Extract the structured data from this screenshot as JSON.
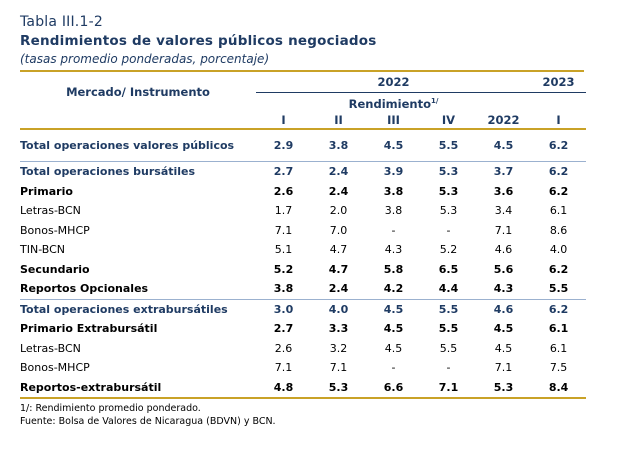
{
  "table_number": "Tabla III.1-2",
  "title": "Rendimientos de valores públicos negociados",
  "subtitle": "(tasas promedio ponderadas, porcentaje)",
  "header": {
    "left": "Mercado/ Instrumento",
    "year_2022": "2022",
    "year_2023": "2023",
    "rendimiento": "Rendimiento",
    "rendimiento_note": "1/",
    "columns": [
      "I",
      "II",
      "III",
      "IV",
      "2022",
      "I"
    ]
  },
  "rows": [
    {
      "label": "Total operaciones valores públicos",
      "style": "blue",
      "values": [
        "2.9",
        "3.8",
        "4.5",
        "5.5",
        "4.5",
        "6.2"
      ]
    },
    {
      "label": "Total operaciones bursátiles",
      "style": "blue",
      "values": [
        "2.7",
        "2.4",
        "3.9",
        "5.3",
        "3.7",
        "6.2"
      ]
    },
    {
      "label": "Primario",
      "style": "bold",
      "values": [
        "2.6",
        "2.4",
        "3.8",
        "5.3",
        "3.6",
        "6.2"
      ]
    },
    {
      "label": "Letras-BCN",
      "style": "reg",
      "values": [
        "1.7",
        "2.0",
        "3.8",
        "5.3",
        "3.4",
        "6.1"
      ]
    },
    {
      "label": "Bonos-MHCP",
      "style": "reg",
      "values": [
        "7.1",
        "7.0",
        "-",
        "-",
        "7.1",
        "8.6"
      ]
    },
    {
      "label": "TIN-BCN",
      "style": "reg",
      "values": [
        "5.1",
        "4.7",
        "4.3",
        "5.2",
        "4.6",
        "4.0"
      ]
    },
    {
      "label": "Secundario",
      "style": "bold",
      "values": [
        "5.2",
        "4.7",
        "5.8",
        "6.5",
        "5.6",
        "6.2"
      ]
    },
    {
      "label": "Reportos Opcionales",
      "style": "bold",
      "values": [
        "3.8",
        "2.4",
        "4.2",
        "4.4",
        "4.3",
        "5.5"
      ]
    },
    {
      "label": "Total operaciones extrabursátiles",
      "style": "blue",
      "values": [
        "3.0",
        "4.0",
        "4.5",
        "5.5",
        "4.6",
        "6.2"
      ]
    },
    {
      "label": "Primario Extrabursátil",
      "style": "bold",
      "values": [
        "2.7",
        "3.3",
        "4.5",
        "5.5",
        "4.5",
        "6.1"
      ]
    },
    {
      "label": "Letras-BCN",
      "style": "reg",
      "values": [
        "2.6",
        "3.2",
        "4.5",
        "5.5",
        "4.5",
        "6.1"
      ]
    },
    {
      "label": "Bonos-MHCP",
      "style": "reg",
      "values": [
        "7.1",
        "7.1",
        "-",
        "-",
        "7.1",
        "7.5"
      ]
    },
    {
      "label": "Reportos-extrabursátil",
      "style": "bold",
      "values": [
        "4.8",
        "5.3",
        "6.6",
        "7.1",
        "5.3",
        "8.4"
      ]
    }
  ],
  "notes": [
    "1/: Rendimiento promedio ponderado.",
    "Fuente: Bolsa de Valores de Nicaragua (BDVN) y BCN."
  ]
}
